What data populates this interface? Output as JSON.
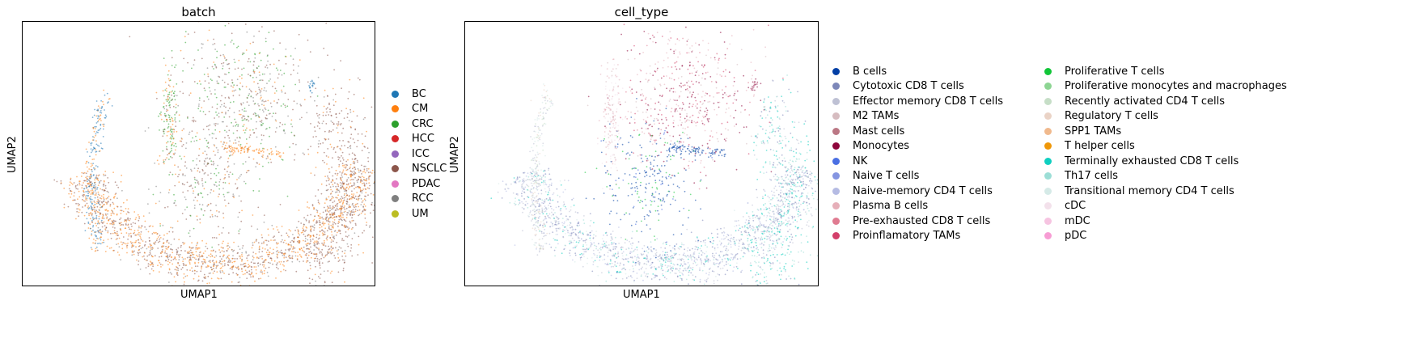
{
  "chart_data": [
    {
      "type": "scatter",
      "title": "batch",
      "xlabel": "UMAP1",
      "ylabel": "UMAP2",
      "grid": false,
      "legend_position": "right",
      "categories": [
        {
          "name": "BC",
          "color": "#1f77b4"
        },
        {
          "name": "CM",
          "color": "#ff7f0e"
        },
        {
          "name": "CRC",
          "color": "#2ca02c"
        },
        {
          "name": "HCC",
          "color": "#d62728"
        },
        {
          "name": "ICC",
          "color": "#9467bd"
        },
        {
          "name": "NSCLC",
          "color": "#8c564b"
        },
        {
          "name": "PDAC",
          "color": "#e377c2"
        },
        {
          "name": "RCC",
          "color": "#7f7f7f"
        },
        {
          "name": "UM",
          "color": "#bcbd22"
        }
      ]
    },
    {
      "type": "scatter",
      "title": "cell_type",
      "xlabel": "UMAP1",
      "ylabel": "UMAP2",
      "grid": false,
      "legend_position": "right",
      "categories": [
        {
          "name": "B cells",
          "color": "#023fa5"
        },
        {
          "name": "Cytotoxic CD8 T cells",
          "color": "#7d87b9"
        },
        {
          "name": "Effector memory CD8 T cells",
          "color": "#bec1d4"
        },
        {
          "name": "M2 TAMs",
          "color": "#d6bcc0"
        },
        {
          "name": "Mast cells",
          "color": "#bb7784"
        },
        {
          "name": "Monocytes",
          "color": "#8e063b"
        },
        {
          "name": "NK",
          "color": "#4a6fe3"
        },
        {
          "name": "Naive T cells",
          "color": "#8595e1"
        },
        {
          "name": "Naive-memory CD4 T cells",
          "color": "#b5bbe3"
        },
        {
          "name": "Plasma B cells",
          "color": "#e6afb9"
        },
        {
          "name": "Pre-exhausted CD8 T cells",
          "color": "#e07b91"
        },
        {
          "name": "Proinflamatory TAMs",
          "color": "#d33f6a"
        },
        {
          "name": "Proliferative T cells",
          "color": "#11c638"
        },
        {
          "name": "Proliferative monocytes and macrophages",
          "color": "#8dd593"
        },
        {
          "name": "Recently activated CD4 T cells",
          "color": "#c6dec7"
        },
        {
          "name": "Regulatory T cells",
          "color": "#ead3c6"
        },
        {
          "name": "SPP1 TAMs",
          "color": "#f0b98d"
        },
        {
          "name": "T helper cells",
          "color": "#ef9708"
        },
        {
          "name": "Terminally exhausted CD8 T cells",
          "color": "#0fcfc0"
        },
        {
          "name": "Th17 cells",
          "color": "#9cded6"
        },
        {
          "name": "Transitional memory CD4 T cells",
          "color": "#d5eae7"
        },
        {
          "name": "cDC",
          "color": "#f3e1eb"
        },
        {
          "name": "mDC",
          "color": "#f6c4e1"
        },
        {
          "name": "pDC",
          "color": "#f79cd4"
        }
      ]
    }
  ]
}
